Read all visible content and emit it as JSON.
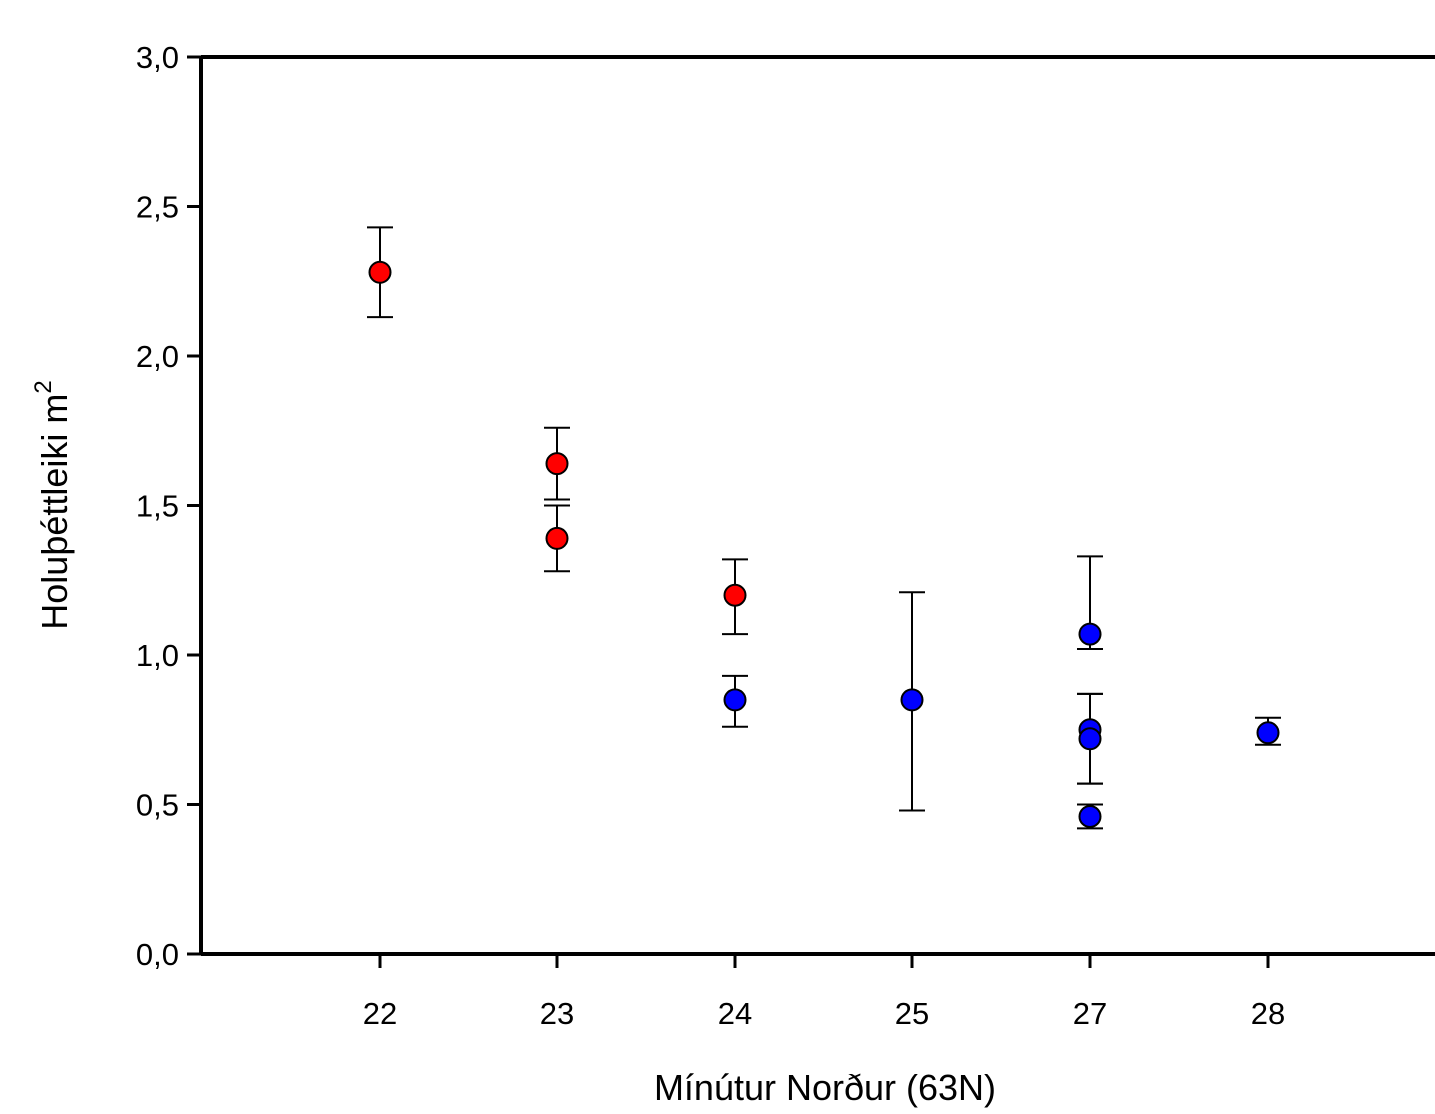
{
  "chart_data": {
    "type": "scatter",
    "title": "",
    "xlabel": "Mínútur Norður (63N)",
    "ylabel": "Holuþéttleiki m",
    "ylabel_superscript": "2",
    "x_categories": [
      "22",
      "23",
      "24",
      "25",
      "27",
      "28"
    ],
    "y_ticks": [
      "0,0",
      "0,5",
      "1,0",
      "1,5",
      "2,0",
      "2,5",
      "3,0"
    ],
    "ylim": [
      0,
      3
    ],
    "grid": false,
    "legend": "none",
    "series": [
      {
        "color": "#ff0000",
        "points": [
          {
            "x": "22",
            "y": 2.28,
            "err_low": 2.13,
            "err_high": 2.43
          },
          {
            "x": "23",
            "y": 1.64,
            "err_low": 1.52,
            "err_high": 1.76
          },
          {
            "x": "23",
            "y": 1.39,
            "err_low": 1.28,
            "err_high": 1.5
          },
          {
            "x": "24",
            "y": 1.2,
            "err_low": 1.07,
            "err_high": 1.32
          }
        ]
      },
      {
        "color": "#0000ff",
        "points": [
          {
            "x": "24",
            "y": 0.85,
            "err_low": 0.76,
            "err_high": 0.93
          },
          {
            "x": "25",
            "y": 0.85,
            "err_low": 0.48,
            "err_high": 1.21
          },
          {
            "x": "27",
            "y": 1.07,
            "err_low": 1.02,
            "err_high": 1.33
          },
          {
            "x": "27",
            "y": 0.75,
            "err_low": 0.57,
            "err_high": 0.87
          },
          {
            "x": "27",
            "y": 0.72,
            "err_low": 0.57,
            "err_high": 0.87
          },
          {
            "x": "27",
            "y": 0.46,
            "err_low": 0.42,
            "err_high": 0.5
          },
          {
            "x": "28",
            "y": 0.74,
            "err_low": 0.7,
            "err_high": 0.79
          }
        ]
      }
    ]
  }
}
